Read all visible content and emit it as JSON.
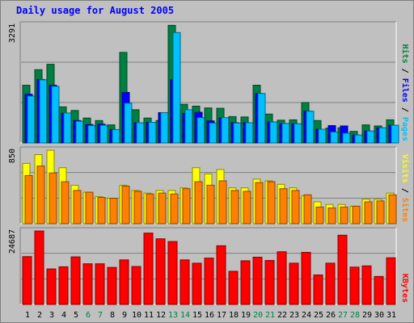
{
  "chart_data": {
    "type": "bar",
    "title": "Daily usage for August 2005",
    "categories": [
      "1",
      "2",
      "3",
      "4",
      "5",
      "6",
      "7",
      "8",
      "9",
      "10",
      "11",
      "12",
      "13",
      "14",
      "15",
      "16",
      "17",
      "18",
      "19",
      "20",
      "21",
      "22",
      "23",
      "24",
      "25",
      "26",
      "27",
      "28",
      "29",
      "30",
      "31"
    ],
    "weekend_days": [
      "6",
      "7",
      "13",
      "14",
      "20",
      "21",
      "27",
      "28"
    ],
    "panels": [
      {
        "name": "pages-files-hits",
        "ymax": 3291,
        "ymax_label": "3291",
        "ylabel_parts": [
          "Pages",
          "Files",
          "Hits"
        ],
        "series": [
          {
            "name": "Hits",
            "color": "#008040",
            "values": [
              1600,
              2030,
              2180,
              1000,
              900,
              690,
              620,
              500,
              2510,
              920,
              690,
              620,
              3260,
              1070,
              1020,
              970,
              960,
              730,
              720,
              1600,
              800,
              630,
              640,
              1120,
              620,
              410,
              420,
              320,
              500,
              470,
              640
            ]
          },
          {
            "name": "Files",
            "color": "#0000ff",
            "values": [
              1350,
              1760,
              1600,
              820,
              620,
              510,
              520,
              370,
              1400,
              560,
              570,
              840,
              1750,
              820,
              850,
              610,
              690,
              560,
              560,
              1370,
              580,
              540,
              530,
              880,
              380,
              480,
              470,
              220,
              330,
              420,
              490
            ]
          },
          {
            "name": "Pages",
            "color": "#00c0ff",
            "values": [
              1300,
              1750,
              1570,
              830,
              600,
              480,
              490,
              370,
              1100,
              560,
              570,
              840,
              3060,
              920,
              700,
              550,
              700,
              550,
              560,
              1370,
              580,
              540,
              530,
              880,
              380,
              300,
              270,
              220,
              330,
              420,
              490
            ]
          }
        ]
      },
      {
        "name": "visits-sites",
        "ymax": 850,
        "ymax_label": "850",
        "ylabel_parts": [
          "Sites",
          "Visits"
        ],
        "series": [
          {
            "name": "Visits",
            "color": "#ffff00",
            "values": [
              690,
              790,
              840,
              640,
              440,
              360,
              310,
              290,
              440,
              380,
              350,
              380,
              380,
              410,
              640,
              570,
              620,
              410,
              410,
              510,
              490,
              450,
              410,
              320,
              250,
              220,
              220,
              200,
              280,
              280,
              350
            ]
          },
          {
            "name": "Sites",
            "color": "#ff8000",
            "values": [
              550,
              660,
              580,
              480,
              380,
              360,
              300,
              290,
              430,
              370,
              340,
              350,
              340,
              400,
              480,
              440,
              490,
              380,
              370,
              470,
              480,
              400,
              380,
              330,
              190,
              180,
              190,
              200,
              250,
              260,
              330
            ]
          }
        ]
      },
      {
        "name": "kbytes",
        "ymax": 24687,
        "ymax_label": "24687",
        "ylabel_parts": [
          "KBytes"
        ],
        "series": [
          {
            "name": "KBytes",
            "color": "#ff0000",
            "values": [
              15900,
              24400,
              11800,
              12500,
              15800,
              13500,
              13500,
              12300,
              14800,
              12600,
              23700,
              21800,
              20900,
              14800,
              13700,
              15400,
              19500,
              11000,
              14500,
              15700,
              14600,
              17500,
              13700,
              17300,
              9800,
              13700,
              23000,
              12400,
              12800,
              9300,
              15500
            ]
          }
        ]
      }
    ]
  },
  "colors": {
    "background": "#c0c0c0",
    "frame_light": "#ffffff",
    "frame_dark": "#808080",
    "title": "#0000ff",
    "weekend_label": "#008040",
    "weekday_label": "#000000",
    "axis_label": "#000000",
    "separator": "#000000",
    "gridline": "#808080"
  }
}
